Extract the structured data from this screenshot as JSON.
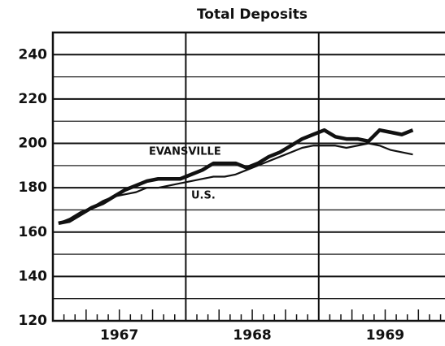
{
  "chart_data": {
    "type": "line",
    "title": "Total Deposits",
    "xlim": [
      1967,
      1969.95
    ],
    "xticks": [
      1968,
      1969
    ],
    "year_labels": [
      {
        "value": 1967.5,
        "label": "1967"
      },
      {
        "value": 1968.5,
        "label": "1968"
      },
      {
        "value": 1969.5,
        "label": "1969"
      }
    ],
    "ylim": [
      120,
      250
    ],
    "yticks": [
      120,
      140,
      160,
      180,
      200,
      220,
      240
    ],
    "y_minor_gridlines": [
      130,
      150,
      170,
      190,
      210,
      230
    ],
    "grid": true,
    "x": [
      1967.042,
      1967.125,
      1967.208,
      1967.292,
      1967.375,
      1967.458,
      1967.542,
      1967.625,
      1967.708,
      1967.792,
      1967.875,
      1967.958,
      1968.042,
      1968.125,
      1968.208,
      1968.292,
      1968.375,
      1968.458,
      1968.542,
      1968.625,
      1968.708,
      1968.792,
      1968.875,
      1968.958,
      1969.042,
      1969.125,
      1969.208,
      1969.292,
      1969.375,
      1969.458,
      1969.542,
      1969.625,
      1969.708
    ],
    "series": [
      {
        "name": "EVANSVILLE",
        "color": "#111111",
        "values": [
          164,
          165,
          168,
          171,
          173,
          176,
          179,
          181,
          183,
          184,
          184,
          184,
          186,
          188,
          191,
          191,
          191,
          189,
          191,
          194,
          196,
          199,
          202,
          204,
          206,
          203,
          202,
          202,
          201,
          206,
          205,
          204,
          206
        ]
      },
      {
        "name": "U.S.",
        "color": "#111111",
        "values": [
          164,
          166,
          169,
          171,
          174,
          176,
          177,
          178,
          180,
          180,
          181,
          182,
          183,
          184,
          185,
          185,
          186,
          188,
          190,
          192,
          194,
          196,
          198,
          199,
          199,
          199,
          198,
          199,
          200,
          199,
          197,
          196,
          195
        ]
      }
    ]
  }
}
